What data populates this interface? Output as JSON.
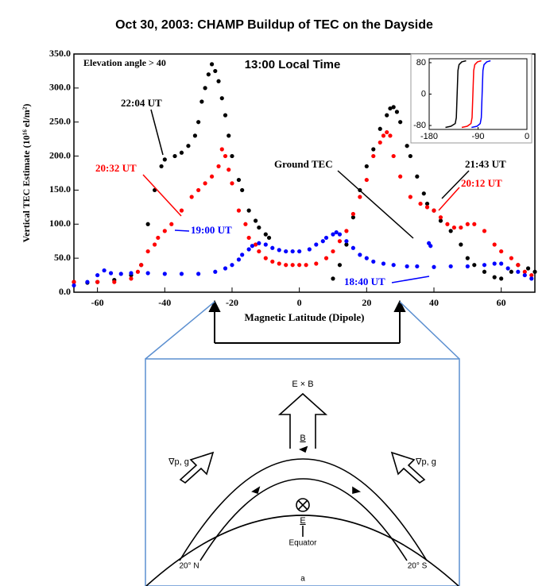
{
  "title": "Oct 30, 2003: CHAMP Buildup of TEC on the Dayside",
  "chart_data": [
    {
      "type": "scatter",
      "xlabel": "Magnetic Latitude (Dipole)",
      "ylabel": "Vertical TEC Estimate (10¹⁶ el/m²)",
      "xlim": [
        -67,
        70
      ],
      "ylim": [
        0,
        350
      ],
      "xticks": [
        -60,
        -40,
        -20,
        0,
        20,
        40,
        60
      ],
      "yticks": [
        {
          "value": 0,
          "label": "0.0"
        },
        {
          "value": 50,
          "label": "50.0"
        },
        {
          "value": 100,
          "label": "100.0"
        },
        {
          "value": 150,
          "label": "150.0"
        },
        {
          "value": 200,
          "label": "200.0"
        },
        {
          "value": 250,
          "label": "250.0"
        },
        {
          "value": 300,
          "label": "300.0"
        },
        {
          "value": 350,
          "label": "350.0"
        }
      ],
      "series": [
        {
          "color": "#000000",
          "x": [
            -67,
            -63,
            -60,
            -55,
            -50,
            -47,
            -45,
            -43,
            -41,
            -40,
            -37,
            -35,
            -33,
            -31,
            -30,
            -29,
            -28,
            -27,
            -26,
            -25,
            -24,
            -23,
            -22,
            -21,
            -20,
            -18,
            -17,
            -15,
            -13,
            -12,
            -10,
            -9,
            10,
            12,
            14,
            16,
            18,
            20,
            22,
            24,
            26,
            27,
            28,
            29,
            30,
            32,
            33,
            35,
            37,
            38,
            40,
            42,
            45,
            48,
            50,
            52,
            55,
            58,
            60,
            63,
            65,
            68,
            70
          ],
          "values": [
            15,
            14,
            15,
            18,
            25,
            40,
            100,
            150,
            185,
            195,
            200,
            205,
            215,
            230,
            250,
            280,
            300,
            320,
            335,
            325,
            310,
            285,
            260,
            230,
            200,
            165,
            150,
            120,
            105,
            95,
            85,
            80,
            20,
            40,
            70,
            110,
            150,
            185,
            210,
            240,
            260,
            270,
            272,
            265,
            250,
            215,
            200,
            170,
            145,
            130,
            120,
            105,
            90,
            70,
            50,
            40,
            30,
            22,
            20,
            30,
            40,
            35,
            30
          ]
        },
        {
          "color": "#ff0000",
          "x": [
            -67,
            -60,
            -55,
            -50,
            -48,
            -47,
            -45,
            -43,
            -42,
            -40,
            -38,
            -35,
            -32,
            -30,
            -28,
            -26,
            -24,
            -23,
            -22,
            -21,
            -20,
            -18,
            -16,
            -15,
            -13,
            -12,
            -10,
            -8,
            -6,
            -4,
            -2,
            0,
            2,
            5,
            8,
            10,
            12,
            14,
            16,
            18,
            20,
            22,
            24,
            25,
            26,
            27,
            28,
            30,
            33,
            36,
            38,
            40,
            42,
            44,
            46,
            48,
            50,
            52,
            55,
            58,
            60,
            63,
            65,
            67,
            69
          ],
          "values": [
            15,
            15,
            15,
            20,
            30,
            40,
            60,
            70,
            80,
            90,
            100,
            120,
            140,
            150,
            160,
            170,
            185,
            210,
            200,
            180,
            160,
            120,
            100,
            80,
            70,
            60,
            50,
            45,
            42,
            40,
            40,
            40,
            40,
            42,
            50,
            60,
            75,
            90,
            115,
            140,
            165,
            200,
            220,
            230,
            235,
            230,
            200,
            170,
            140,
            130,
            125,
            120,
            110,
            100,
            95,
            95,
            100,
            100,
            90,
            70,
            60,
            50,
            40,
            30,
            25
          ]
        },
        {
          "color": "#0000ff",
          "x": [
            -67,
            -63,
            -60,
            -58,
            -56,
            -53,
            -50,
            -45,
            -40,
            -35,
            -30,
            -25,
            -22,
            -20,
            -18,
            -17,
            -15,
            -14,
            -12,
            -10,
            -8,
            -6,
            -4,
            -2,
            0,
            3,
            5,
            7,
            8,
            10,
            11,
            12,
            14,
            16,
            18,
            20,
            22,
            25,
            28,
            32,
            35,
            38.5,
            39,
            40,
            45,
            50,
            55,
            58,
            60,
            62,
            65,
            67,
            69
          ],
          "values": [
            10,
            15,
            25,
            32,
            28,
            27,
            28,
            28,
            27,
            27,
            27,
            30,
            35,
            40,
            48,
            55,
            63,
            68,
            72,
            70,
            65,
            62,
            60,
            60,
            60,
            63,
            70,
            75,
            80,
            85,
            88,
            85,
            75,
            65,
            55,
            50,
            45,
            42,
            40,
            38,
            38,
            72,
            68,
            37,
            38,
            38,
            40,
            42,
            42,
            35,
            30,
            25,
            20
          ]
        }
      ],
      "annotations": [
        {
          "text": "Elevation angle > 40",
          "color": "#000000"
        },
        {
          "text": "13:00 Local Time",
          "color": "#000000"
        },
        {
          "text": "22:04 UT",
          "color": "#000000"
        },
        {
          "text": "20:32 UT",
          "color": "#ff0000"
        },
        {
          "text": "19:00 UT",
          "color": "#0000ff"
        },
        {
          "text": "Ground TEC",
          "color": "#000000"
        },
        {
          "text": "21:43 UT",
          "color": "#000000"
        },
        {
          "text": "20:12 UT",
          "color": "#ff0000"
        },
        {
          "text": "18:40 UT",
          "color": "#0000ff"
        }
      ]
    },
    {
      "type": "line",
      "xlim": [
        -180,
        0
      ],
      "ylim": [
        -90,
        90
      ],
      "xticks": [
        -180,
        -90,
        0
      ],
      "yticks": [
        80,
        0,
        -80
      ],
      "series": [
        {
          "color": "#000000",
          "x": [
            -150,
            -140,
            -132,
            -130,
            -129,
            -128,
            -127,
            -125,
            -120,
            -112
          ],
          "values": [
            -85,
            -82,
            -75,
            -60,
            -20,
            20,
            60,
            75,
            82,
            85
          ]
        },
        {
          "color": "#ff0000",
          "x": [
            -120,
            -110,
            -103,
            -101,
            -100,
            -99,
            -98,
            -96,
            -91,
            -84
          ],
          "values": [
            -85,
            -82,
            -75,
            -60,
            -20,
            20,
            60,
            75,
            82,
            85
          ]
        },
        {
          "color": "#0000ff",
          "x": [
            -102,
            -92,
            -86,
            -84,
            -83,
            -82,
            -81,
            -79,
            -74,
            -67
          ],
          "values": [
            -85,
            -82,
            -75,
            -60,
            -20,
            20,
            60,
            75,
            82,
            85
          ]
        }
      ]
    }
  ],
  "diagram": {
    "exb": "E × B",
    "b": "B",
    "grad_left": "∇p, g",
    "grad_right": "∇p, g",
    "e": "E",
    "equator": "Equator",
    "north": "20° N",
    "south": "20° S",
    "caption": "a"
  }
}
